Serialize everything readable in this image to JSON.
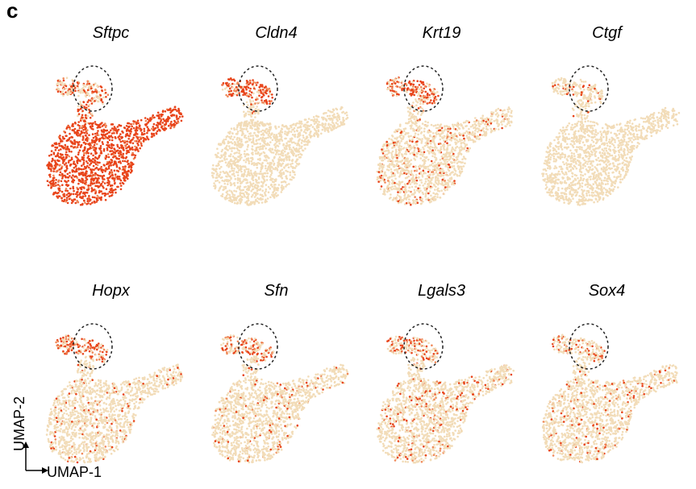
{
  "panel_letter": "c",
  "axes": {
    "x_label": "UMAP-1",
    "y_label": "UMAP-2"
  },
  "colors": {
    "background_cell": "#f2dcb8",
    "high_expression": "#e8441a",
    "mid_expression": "#f08a5a",
    "circle": "#222222"
  },
  "panels": [
    {
      "gene": "Sftpc",
      "expr_main": 0.92,
      "expr_top": 0.35
    },
    {
      "gene": "Cldn4",
      "expr_main": 0.0,
      "expr_top": 0.55
    },
    {
      "gene": "Krt19",
      "expr_main": 0.08,
      "expr_top": 0.5
    },
    {
      "gene": "Ctgf",
      "expr_main": 0.0,
      "expr_top": 0.1
    },
    {
      "gene": "Hopx",
      "expr_main": 0.05,
      "expr_top": 0.45
    },
    {
      "gene": "Sfn",
      "expr_main": 0.04,
      "expr_top": 0.35
    },
    {
      "gene": "Lgals3",
      "expr_main": 0.07,
      "expr_top": 0.3
    },
    {
      "gene": "Sox4",
      "expr_main": 0.06,
      "expr_top": 0.2
    }
  ]
}
